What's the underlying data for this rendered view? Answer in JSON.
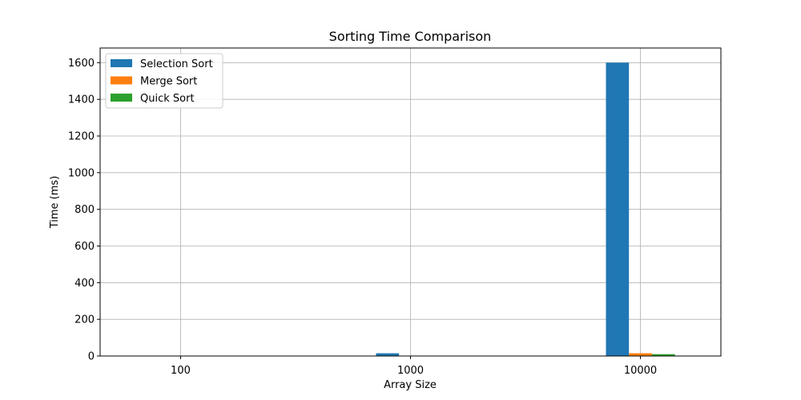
{
  "chart_data": {
    "type": "bar",
    "title": "Sorting Time Comparison",
    "xlabel": "Array Size",
    "ylabel": "Time (ms)",
    "categories": [
      "100",
      "1000",
      "10000"
    ],
    "series": [
      {
        "name": "Selection Sort",
        "color": "#1f77b4",
        "values": [
          0.2,
          15,
          1600
        ]
      },
      {
        "name": "Merge Sort",
        "color": "#ff7f0e",
        "values": [
          0.1,
          1.5,
          15
        ]
      },
      {
        "name": "Quick Sort",
        "color": "#2ca02c",
        "values": [
          0.05,
          1,
          10
        ]
      }
    ],
    "ylim": [
      0,
      1680
    ],
    "yticks": [
      "0",
      "200",
      "400",
      "600",
      "800",
      "1000",
      "1200",
      "1400",
      "1600"
    ],
    "grid": true,
    "legend_position": "top-left"
  }
}
